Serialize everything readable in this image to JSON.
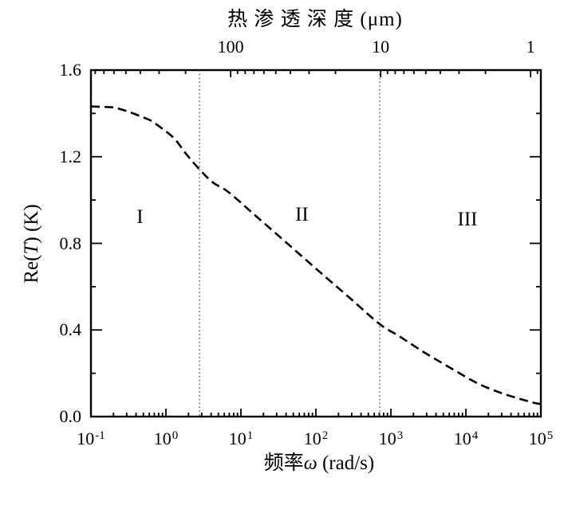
{
  "chart_data": {
    "type": "line",
    "title": "",
    "grid": false,
    "legend": false,
    "x_scale": "log",
    "xlim": [
      0.1,
      100000
    ],
    "ylim": [
      0,
      1.6
    ],
    "xlabel": {
      "prefix": "频率",
      "symbol": "ω",
      "suffix": " (rad/s)",
      "full": "频率ω (rad/s)"
    },
    "ylabel": {
      "prefix": "Re(",
      "symbol": "T",
      "suffix": ") (K)",
      "full": "Re(T) (K)"
    },
    "x_ticks": [
      {
        "mantissa": "10",
        "exponent": "-1"
      },
      {
        "mantissa": "10",
        "exponent": "0"
      },
      {
        "mantissa": "10",
        "exponent": "1"
      },
      {
        "mantissa": "10",
        "exponent": "2"
      },
      {
        "mantissa": "10",
        "exponent": "3"
      },
      {
        "mantissa": "10",
        "exponent": "4"
      },
      {
        "mantissa": "10",
        "exponent": "5"
      }
    ],
    "y_ticks": {
      "labels": [
        "0.0",
        "0.4",
        "0.8",
        "1.2",
        "1.6"
      ],
      "values": [
        0,
        0.4,
        0.8,
        1.2,
        1.6
      ],
      "minor_values": [
        0.2,
        0.6,
        1.0,
        1.4
      ]
    },
    "top_axis": {
      "label": "热 渗 透 深 度 (μm)",
      "unit": "μm",
      "relation": "depth = 100 * sqrt(omega_at_depth_100 / omega)",
      "omega_at_depth_100": 7.3,
      "ticks": [
        {
          "label": "100",
          "depth": 100
        },
        {
          "label": "10",
          "depth": 10
        },
        {
          "label": "1",
          "depth": 1
        }
      ],
      "minor_tick_depths": [
        800,
        700,
        600,
        500,
        400,
        300,
        200,
        90,
        80,
        70,
        60,
        50,
        40,
        30,
        20,
        9,
        8,
        7,
        6,
        5,
        4,
        3,
        2,
        0.9
      ]
    },
    "series": [
      {
        "name": "Re(T)",
        "style": "dashed",
        "color": "#000000",
        "points": [
          [
            0.1,
            1.432
          ],
          [
            0.148,
            1.43
          ],
          [
            0.204,
            1.427
          ],
          [
            0.273,
            1.415
          ],
          [
            0.366,
            1.4
          ],
          [
            0.504,
            1.381
          ],
          [
            0.644,
            1.365
          ],
          [
            0.906,
            1.328
          ],
          [
            1.31,
            1.282
          ],
          [
            1.89,
            1.21
          ],
          [
            2.87,
            1.138
          ],
          [
            4.24,
            1.081
          ],
          [
            6.92,
            1.035
          ],
          [
            15.5,
            0.929
          ],
          [
            41.4,
            0.8
          ],
          [
            110,
            0.671
          ],
          [
            294,
            0.543
          ],
          [
            710,
            0.427
          ],
          [
            1280,
            0.372
          ],
          [
            2860,
            0.294
          ],
          [
            6590,
            0.22
          ],
          [
            14800,
            0.151
          ],
          [
            33200,
            0.103
          ],
          [
            76400,
            0.066
          ],
          [
            100000,
            0.058
          ]
        ]
      }
    ],
    "region_boundaries": {
      "style": "dotted-vertical",
      "color": "#444444",
      "omega": [
        2.8,
        710
      ]
    },
    "region_labels": [
      {
        "text": "I",
        "omega": 0.45,
        "T": 0.92
      },
      {
        "text": "II",
        "omega": 65,
        "T": 0.93
      },
      {
        "text": "III",
        "omega": 10500,
        "T": 0.91
      }
    ],
    "colors": {
      "axis": "#000000",
      "curve": "#000000",
      "boundary": "#444444",
      "background": "#ffffff"
    }
  }
}
